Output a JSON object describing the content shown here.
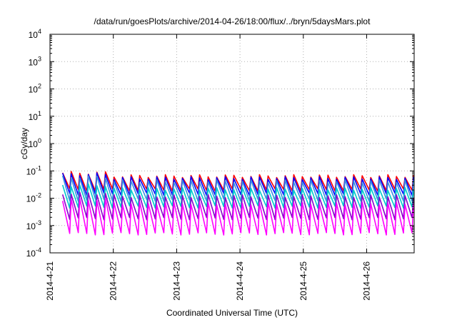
{
  "chart_data": {
    "type": "line",
    "title": "/data/run/goesPlots/archive/2014-04-26/18:00/flux/../bryn/5daysMars.plot",
    "xlabel": "Coordinated Universal Time (UTC)",
    "ylabel": "cGy/day",
    "yscale": "log",
    "ylim": [
      0.0001,
      10000
    ],
    "xlim": [
      "2014-04-21T00:00",
      "2014-04-26T18:00"
    ],
    "grid": true,
    "x_ticks": [
      "2014-4-21",
      "2014-4-22",
      "2014-4-23",
      "2014-4-24",
      "2014-4-25",
      "2014-4-26"
    ],
    "y_ticks": [
      {
        "base": "10",
        "exp": "-4"
      },
      {
        "base": "10",
        "exp": "-3"
      },
      {
        "base": "10",
        "exp": "-2"
      },
      {
        "base": "10",
        "exp": "-1"
      },
      {
        "base": "10",
        "exp": "0"
      },
      {
        "base": "10",
        "exp": "1"
      },
      {
        "base": "10",
        "exp": "2"
      },
      {
        "base": "10",
        "exp": "3"
      },
      {
        "base": "10",
        "exp": "4"
      }
    ],
    "periodic_series": {
      "cycles_per_day": 7.4,
      "start_day": 0.2,
      "early_boost_until_day": 0.9
    },
    "series": [
      {
        "color": "#ff0000",
        "peak": 0.065,
        "trough": 0.02,
        "early_peak": 0.085
      },
      {
        "color": "#0000ff",
        "peak": 0.055,
        "trough": 0.014,
        "early_peak": 0.075
      },
      {
        "color": "#3a8fe0",
        "peak": 0.042,
        "trough": 0.0085,
        "early_peak": 0.06
      },
      {
        "color": "#00cccc",
        "peak": 0.022,
        "trough": 0.0048,
        "early_peak": 0.03
      },
      {
        "color": "#8800cc",
        "peak": 0.012,
        "trough": 0.0018,
        "early_peak": 0.015
      },
      {
        "color": "#ff00ff",
        "peak": 0.0065,
        "trough": 0.0005,
        "early_peak": 0.009
      }
    ]
  }
}
